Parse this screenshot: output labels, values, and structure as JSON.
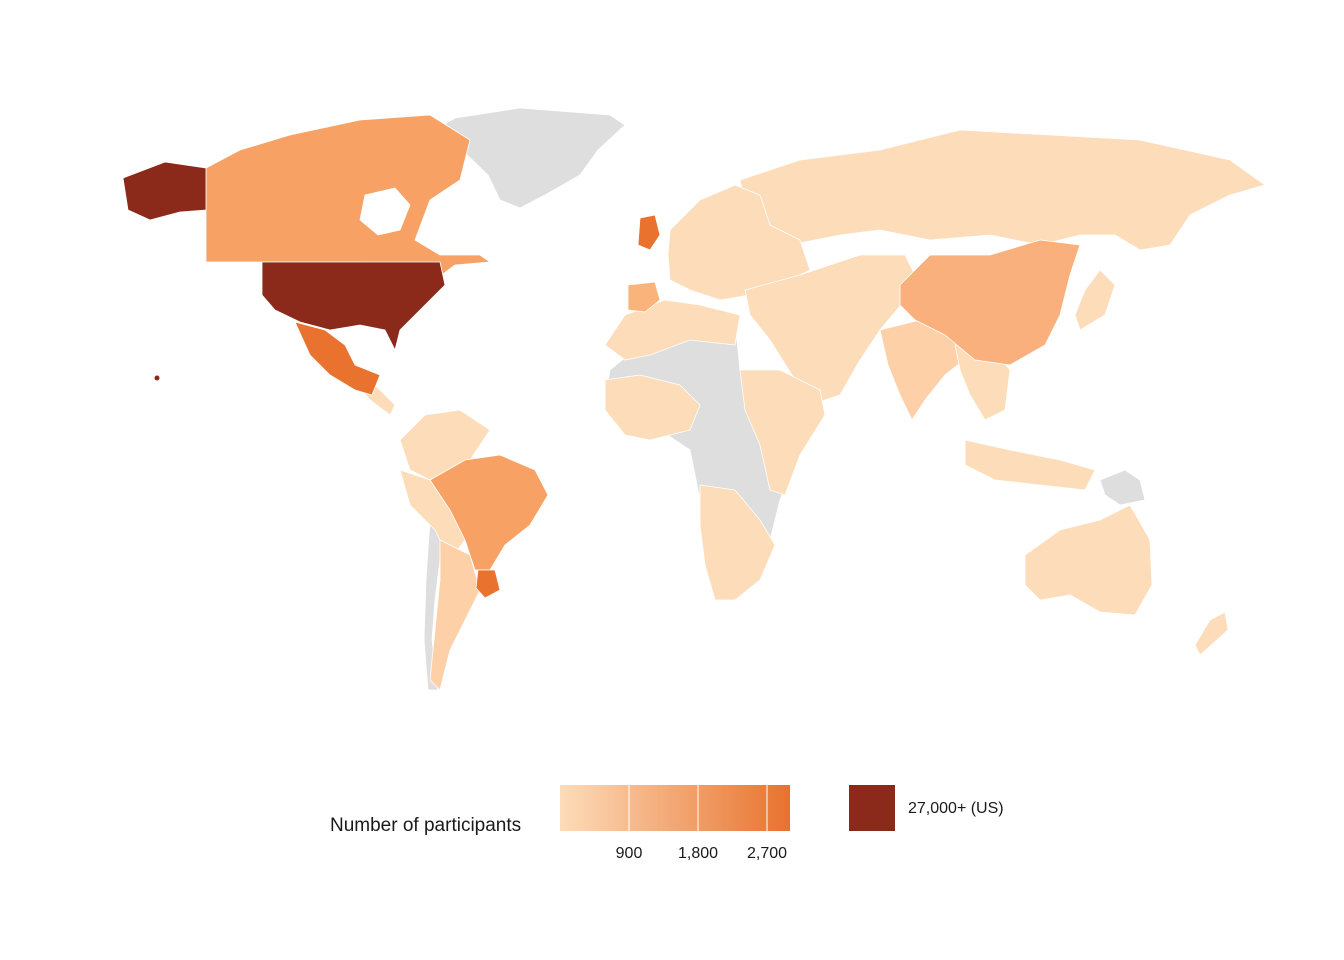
{
  "legend": {
    "title": "Number of participants",
    "ticks": [
      {
        "value": 900,
        "label": "900"
      },
      {
        "value": 1800,
        "label": "1,800"
      },
      {
        "value": 2700,
        "label": "2,700"
      }
    ],
    "scale_min": 0,
    "scale_max": 3000,
    "color_low": "#fddcba",
    "color_high": "#e8722e",
    "us_label": "27,000+ (US)",
    "us_color": "#8b2a1a",
    "no_data_color": "#dedede"
  },
  "regions": [
    {
      "name": "United States",
      "value": 27000
    },
    {
      "name": "Alaska",
      "value": 27000
    },
    {
      "name": "Canada",
      "value": 1500
    },
    {
      "name": "Mexico",
      "value": 2600
    },
    {
      "name": "United Kingdom",
      "value": 2800
    },
    {
      "name": "China",
      "value": 1300
    },
    {
      "name": "Brazil",
      "value": 1500
    },
    {
      "name": "Uruguay region",
      "value": 2400
    },
    {
      "name": "Spain",
      "value": 900
    },
    {
      "name": "Russia",
      "value": 200
    },
    {
      "name": "India",
      "value": 300
    },
    {
      "name": "Australia",
      "value": 300
    },
    {
      "name": "Argentina",
      "value": 300
    },
    {
      "name": "Greenland",
      "value": null
    },
    {
      "name": "Central Africa",
      "value": null
    }
  ]
}
